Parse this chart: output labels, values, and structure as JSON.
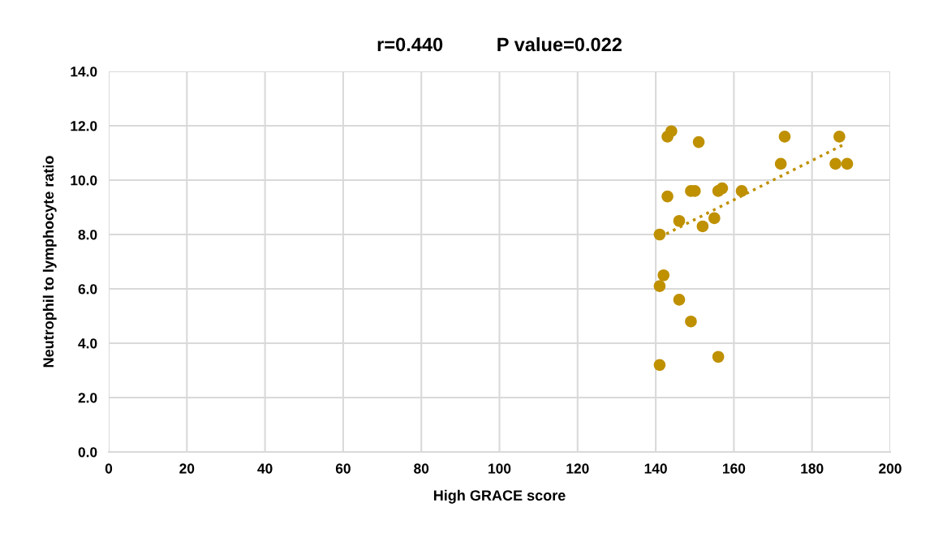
{
  "chart_data": {
    "type": "scatter",
    "title": "r=0.440          P value=0.022",
    "xlabel": "High GRACE score",
    "ylabel": "Neutrophil to lymphocyte ratio",
    "xlim": [
      0,
      200
    ],
    "xticks": [
      0,
      20,
      40,
      60,
      80,
      100,
      120,
      140,
      160,
      180,
      200
    ],
    "ylim": [
      0,
      14
    ],
    "yticks": [
      {
        "value": 0,
        "label": "0.0"
      },
      {
        "value": 2,
        "label": "2.0"
      },
      {
        "value": 4,
        "label": "4.0"
      },
      {
        "value": 6,
        "label": "6.0"
      },
      {
        "value": 8,
        "label": "8.0"
      },
      {
        "value": 10,
        "label": "10.0"
      },
      {
        "value": 12,
        "label": "12.0"
      },
      {
        "value": 14,
        "label": "14.0"
      }
    ],
    "grid": true,
    "series": [
      {
        "marker": "circle",
        "color": "#bf9000",
        "x": [
          141,
          146,
          152,
          155,
          149,
          150,
          156,
          157,
          162,
          143,
          143,
          144,
          151,
          172,
          173,
          187,
          186,
          189,
          142,
          141,
          146,
          149,
          141,
          156
        ],
        "values": [
          8.0,
          8.5,
          8.3,
          8.6,
          9.6,
          9.6,
          9.6,
          9.7,
          9.6,
          9.4,
          11.6,
          11.8,
          11.4,
          10.6,
          11.6,
          11.6,
          10.6,
          10.6,
          6.5,
          6.1,
          5.6,
          4.8,
          3.2,
          3.5
        ]
      },
      {
        "type": "line",
        "marker": "none",
        "color": "#bf9000",
        "line_style": "dotted",
        "x": [
          141,
          188
        ],
        "values": [
          7.9,
          11.3
        ]
      }
    ]
  }
}
